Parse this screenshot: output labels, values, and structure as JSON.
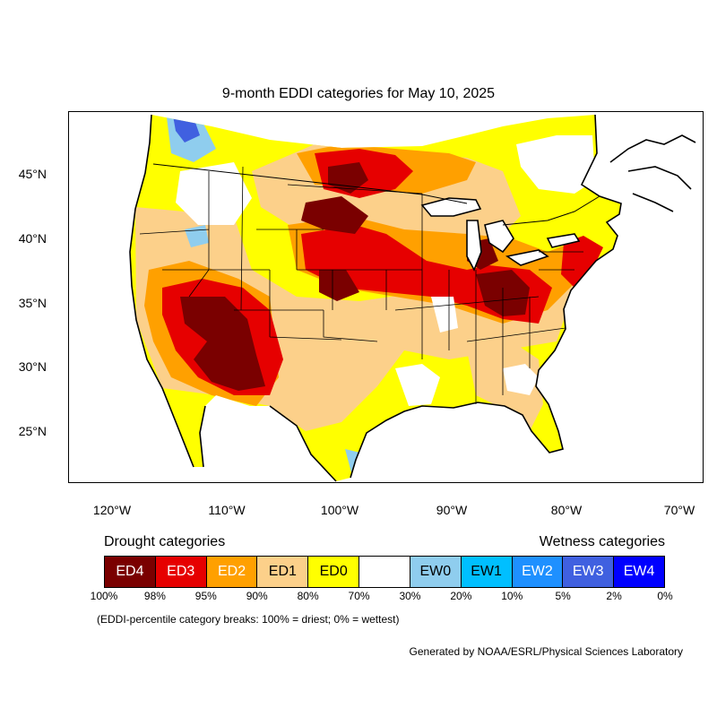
{
  "title": "9-month EDDI categories for May 10, 2025",
  "colors": {
    "ED4": "#7a0000",
    "ED3": "#e60000",
    "ED2": "#ffa000",
    "ED1": "#fcd08a",
    "ED0": "#ffff00",
    "neutral": "#ffffff",
    "EW0": "#8fcdee",
    "EW1": "#00bfff",
    "EW2": "#1e90ff",
    "EW3": "#4060e0",
    "EW4": "#0000ff"
  },
  "map": {
    "latitude_labels": [
      "45°N",
      "40°N",
      "35°N",
      "30°N",
      "25°N"
    ],
    "longitude_labels": [
      "120°W",
      "110°W",
      "100°W",
      "90°W",
      "80°W",
      "70°W"
    ]
  },
  "legend": {
    "drought_heading": "Drought categories",
    "wetness_heading": "Wetness categories",
    "categories": [
      {
        "label": "ED4",
        "color": "#7a0000",
        "text_color": "#ffffff"
      },
      {
        "label": "ED3",
        "color": "#e60000",
        "text_color": "#ffffff"
      },
      {
        "label": "ED2",
        "color": "#ffa000",
        "text_color": "#ffffff"
      },
      {
        "label": "ED1",
        "color": "#fcd08a",
        "text_color": "#000000"
      },
      {
        "label": "ED0",
        "color": "#ffff00",
        "text_color": "#000000"
      },
      {
        "label": "",
        "color": "#ffffff",
        "text_color": "#000000"
      },
      {
        "label": "EW0",
        "color": "#8fcdee",
        "text_color": "#000000"
      },
      {
        "label": "EW1",
        "color": "#00bfff",
        "text_color": "#000000"
      },
      {
        "label": "EW2",
        "color": "#1e90ff",
        "text_color": "#ffffff"
      },
      {
        "label": "EW3",
        "color": "#4060e0",
        "text_color": "#ffffff"
      },
      {
        "label": "EW4",
        "color": "#0000ff",
        "text_color": "#ffffff"
      }
    ],
    "breaks": [
      "100%",
      "98%",
      "95%",
      "90%",
      "80%",
      "70%",
      "30%",
      "20%",
      "10%",
      "5%",
      "2%",
      "0%"
    ],
    "note": "(EDDI-percentile category breaks: 100% = driest; 0% = wettest)"
  },
  "credit": "Generated by NOAA/ESRL/Physical Sciences Laboratory"
}
